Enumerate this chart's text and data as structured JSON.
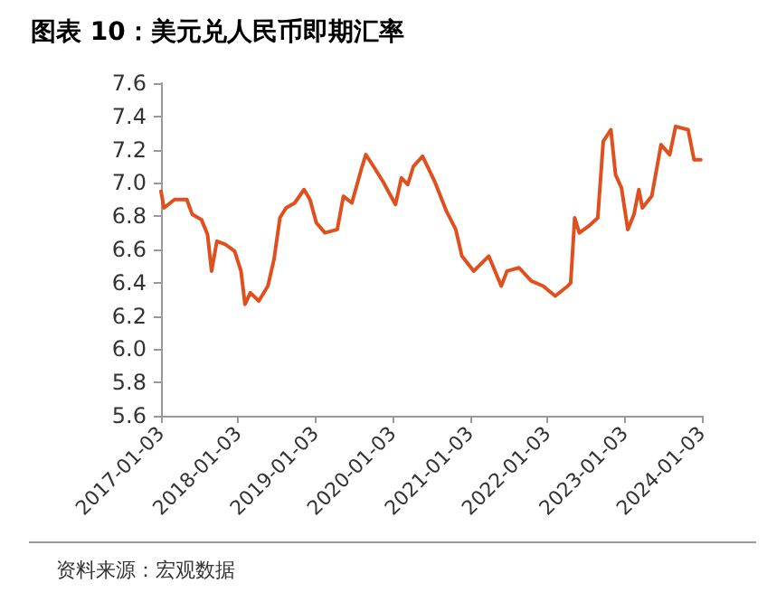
{
  "chart_data": {
    "type": "line",
    "title": "图表 10：美元兑人民币即期汇率",
    "annotations": [
      "资料来源：宏观数据"
    ],
    "x": [
      "2017-01-03",
      "2017-01-17",
      "2017-03-08",
      "2017-05-05",
      "2017-05-31",
      "2017-07-13",
      "2017-08-11",
      "2017-08-30",
      "2017-09-24",
      "2017-11-03",
      "2017-12-17",
      "2018-01-16",
      "2018-02-04",
      "2018-03-01",
      "2018-04-10",
      "2018-05-23",
      "2018-06-21",
      "2018-07-19",
      "2018-08-17",
      "2018-09-27",
      "2018-11-10",
      "2018-12-08",
      "2019-01-07",
      "2019-02-17",
      "2019-04-16",
      "2019-05-15",
      "2019-06-24",
      "2019-08-07",
      "2019-08-29",
      "2019-10-04",
      "2019-11-17",
      "2020-01-16",
      "2020-02-13",
      "2020-03-14",
      "2020-04-10",
      "2020-05-23",
      "2020-07-19",
      "2020-09-13",
      "2020-10-27",
      "2020-11-25",
      "2021-01-20",
      "2021-04-01",
      "2021-05-30",
      "2021-06-26",
      "2021-08-22",
      "2021-10-19",
      "2021-12-14",
      "2022-02-09",
      "2022-04-09",
      "2022-04-23",
      "2022-05-12",
      "2022-06-03",
      "2022-07-17",
      "2022-08-29",
      "2022-09-24",
      "2022-10-30",
      "2022-11-21",
      "2022-12-19",
      "2023-01-18",
      "2023-02-16",
      "2023-03-11",
      "2023-03-28",
      "2023-05-11",
      "2023-06-24",
      "2023-08-04",
      "2023-09-01",
      "2023-10-30",
      "2023-11-27",
      "2023-12-29"
    ],
    "series": [
      {
        "color": "#e0501e",
        "values": [
          6.95,
          6.85,
          6.9,
          6.9,
          6.81,
          6.78,
          6.69,
          6.47,
          6.65,
          6.63,
          6.59,
          6.47,
          6.27,
          6.34,
          6.29,
          6.38,
          6.54,
          6.79,
          6.85,
          6.88,
          6.96,
          6.9,
          6.76,
          6.7,
          6.72,
          6.92,
          6.88,
          7.08,
          7.17,
          7.1,
          7.01,
          6.87,
          7.03,
          6.99,
          7.1,
          7.16,
          7.01,
          6.83,
          6.72,
          6.56,
          6.47,
          6.56,
          6.38,
          6.47,
          6.49,
          6.41,
          6.38,
          6.32,
          6.38,
          6.4,
          6.79,
          6.7,
          6.74,
          6.79,
          7.25,
          7.32,
          7.05,
          6.97,
          6.72,
          6.81,
          6.96,
          6.85,
          6.92,
          7.23,
          7.17,
          7.34,
          7.32,
          7.14,
          7.14
        ]
      }
    ],
    "xlim": [
      "2017-01-03",
      "2024-01-03"
    ],
    "xticks": [
      "2017-01-03",
      "2018-01-03",
      "2019-01-03",
      "2020-01-03",
      "2021-01-03",
      "2022-01-03",
      "2023-01-03",
      "2024-01-03"
    ],
    "ylim": [
      5.6,
      7.6
    ],
    "yticks": [
      {
        "value": 5.6,
        "label": "5.6"
      },
      {
        "value": 5.8,
        "label": "5.8"
      },
      {
        "value": 6,
        "label": "6.0"
      },
      {
        "value": 6.2,
        "label": "6.2"
      },
      {
        "value": 6.4,
        "label": "6.4"
      },
      {
        "value": 6.6,
        "label": "6.6"
      },
      {
        "value": 6.8,
        "label": "6.8"
      },
      {
        "value": 7,
        "label": "7.0"
      },
      {
        "value": 7.2,
        "label": "7.2"
      },
      {
        "value": 7.4,
        "label": "7.4"
      },
      {
        "value": 7.6,
        "label": "7.6"
      }
    ],
    "grid": false,
    "marker": "none",
    "line_style": "solid"
  }
}
